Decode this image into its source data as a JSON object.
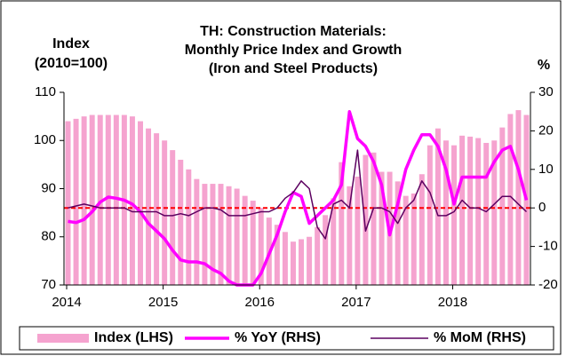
{
  "chart_data": {
    "type": "combo",
    "title": [
      "TH: Construction Materials:",
      "Monthly Price Index and Growth",
      "(Iron and Steel Products)"
    ],
    "ylabel": [
      "Index",
      "(2010=100)"
    ],
    "y2label": "%",
    "categories": [
      "2014",
      null,
      null,
      null,
      null,
      null,
      null,
      null,
      null,
      null,
      null,
      null,
      "2015",
      null,
      null,
      null,
      null,
      null,
      null,
      null,
      null,
      null,
      null,
      null,
      "2016",
      null,
      null,
      null,
      null,
      null,
      null,
      null,
      null,
      null,
      null,
      null,
      "2017",
      null,
      null,
      null,
      null,
      null,
      null,
      null,
      null,
      null,
      null,
      null,
      "2018",
      null,
      null,
      null,
      null,
      null,
      null,
      null,
      null,
      null
    ],
    "ylim": [
      70,
      110
    ],
    "yticks": [
      70,
      80,
      90,
      100,
      110
    ],
    "y2lim": [
      -20,
      30
    ],
    "y2ticks": [
      -20,
      -10,
      0,
      10,
      20,
      30
    ],
    "zero_line": {
      "value": 0,
      "axis": "y2",
      "color": "#ff0000"
    },
    "series": [
      {
        "name": "Index (LHS)",
        "type": "bar",
        "axis": "y",
        "color": "#f5a3cf",
        "values": [
          104,
          104.5,
          105,
          105.3,
          105.3,
          105.3,
          105.3,
          105.3,
          105,
          104,
          102.5,
          101.5,
          100,
          98,
          96,
          94,
          92,
          91,
          91,
          91,
          90.5,
          90,
          88.5,
          87.5,
          86,
          84,
          82.5,
          81,
          79,
          79.5,
          80,
          82,
          84.5,
          88,
          95.5,
          90.5,
          92.5,
          97,
          97.5,
          93.5,
          93.5,
          91.5,
          88.5,
          89,
          93,
          99,
          102.5,
          100,
          99,
          101,
          100.8,
          100.5,
          99.5,
          100,
          102.7,
          105.5,
          106.3,
          105.3
        ]
      },
      {
        "name": "% YoY (RHS)",
        "type": "line",
        "axis": "y2",
        "color": "#ff00ff",
        "width": 3.5,
        "values": [
          -3.5,
          -3.8,
          -3,
          -1,
          1.5,
          2.8,
          2.5,
          2,
          1,
          -1,
          -4,
          -6,
          -8,
          -11,
          -13.5,
          -14,
          -14,
          -14.5,
          -16,
          -17,
          -19,
          -20,
          -20,
          -20,
          -17,
          -12,
          -7,
          -1,
          4,
          3,
          -4,
          -2,
          0,
          2,
          6,
          25,
          18,
          16,
          12,
          6,
          -7,
          1,
          10,
          15,
          19,
          19,
          16,
          10,
          1,
          8,
          8,
          8,
          8,
          12,
          15,
          16,
          10,
          2
        ]
      },
      {
        "name": "% MoM (RHS)",
        "type": "line",
        "axis": "y2",
        "color": "#5c0060",
        "width": 1.5,
        "values": [
          0,
          0.5,
          1,
          0.5,
          0,
          0,
          0,
          0,
          -1,
          -1,
          -1,
          -1,
          -2,
          -2,
          -1.5,
          -2,
          -1,
          0,
          0,
          -0.5,
          -2,
          -2,
          -2,
          -1.5,
          -1,
          -1,
          0,
          2.5,
          4,
          7,
          5,
          -5,
          -8,
          1,
          2,
          0,
          15,
          -6,
          0,
          0,
          -1,
          -4,
          0,
          2,
          7,
          4,
          -2,
          -2,
          -1,
          2,
          0,
          0,
          -1,
          1,
          3,
          3,
          1,
          -1
        ]
      }
    ]
  }
}
